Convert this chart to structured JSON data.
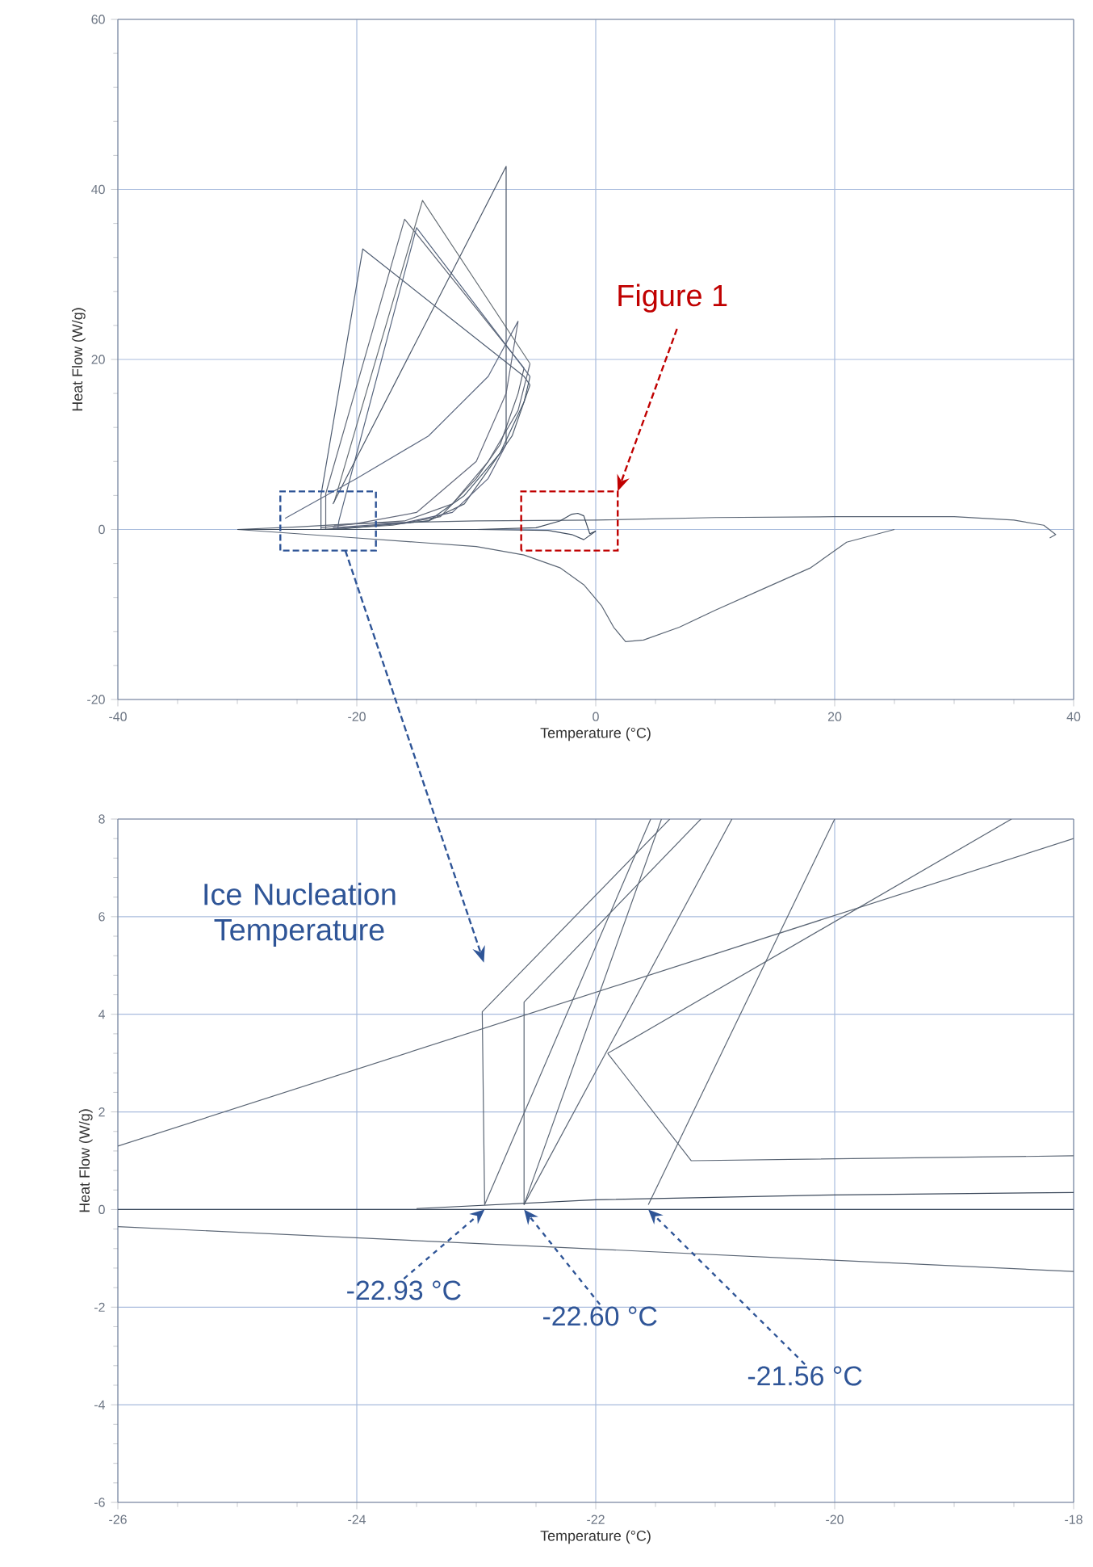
{
  "chart_data": [
    {
      "type": "line",
      "xlabel": "Temperature (°C)",
      "ylabel": "Heat Flow (W/g)",
      "xlim": [
        -40,
        40
      ],
      "ylim": [
        -20,
        60
      ],
      "xticks": [
        -40,
        -20,
        0,
        20,
        40
      ],
      "yticks": [
        -20,
        0,
        20,
        40,
        60
      ],
      "grid": true,
      "line_style": "solid",
      "annotations": [
        "Figure 1"
      ],
      "series": [
        {
          "color": "#5b6675",
          "x": [
            -30,
            -25,
            -20,
            -15,
            -10,
            -6,
            -3,
            -1,
            0.5,
            1.5,
            2.5,
            4,
            7,
            10,
            14,
            18,
            21,
            25
          ],
          "values": [
            0,
            -0.5,
            -1,
            -1.5,
            -2,
            -3,
            -4.5,
            -6.5,
            -9,
            -11.5,
            -13.2,
            -13,
            -11.5,
            -9.5,
            -7,
            -4.5,
            -1.5,
            0
          ]
        },
        {
          "color": "#5b6675",
          "x": [
            -30,
            -25,
            -20,
            -10,
            0,
            10,
            20,
            30,
            35,
            37.5,
            38.5,
            38
          ],
          "values": [
            0,
            0.3,
            0.7,
            1,
            1.1,
            1.4,
            1.5,
            1.5,
            1.1,
            0.5,
            -0.6,
            -1
          ]
        },
        {
          "color": "#4f5d72",
          "x": [
            -23,
            -23,
            -19.5,
            -6,
            -5.5
          ],
          "values": [
            0,
            4,
            33,
            18,
            17
          ]
        },
        {
          "color": "#535f6e",
          "x": [
            -5.5,
            -7,
            -9,
            -11,
            -14,
            -18,
            -23
          ],
          "values": [
            17,
            11,
            7,
            3,
            1,
            0.5,
            0
          ]
        },
        {
          "color": "#626a78",
          "x": [
            -22.6,
            -22.6,
            -16,
            -6
          ],
          "values": [
            0,
            4.2,
            36.5,
            19
          ]
        },
        {
          "color": "#5a6270",
          "x": [
            -6,
            -6.5,
            -8,
            -10,
            -13,
            -17,
            -22.6
          ],
          "values": [
            19,
            16,
            10,
            6,
            1.5,
            0.5,
            0
          ]
        },
        {
          "color": "#56657e",
          "x": [
            -21.6,
            -21.5,
            -15,
            -5.5
          ],
          "values": [
            0,
            1,
            35.5,
            18
          ]
        },
        {
          "color": "#4a5a6c",
          "x": [
            -5.5,
            -6,
            -8,
            -11,
            -14,
            -18,
            -21.6
          ],
          "values": [
            18,
            15,
            9,
            4,
            1,
            0.5,
            0
          ]
        },
        {
          "color": "#666e74",
          "x": [
            -21.9,
            -14.5,
            -5.5
          ],
          "values": [
            3.2,
            38.7,
            19.5
          ]
        },
        {
          "color": "#606878",
          "x": [
            -5.5,
            -6.5,
            -9,
            -12,
            -16,
            -21.9
          ],
          "values": [
            19.5,
            14,
            8,
            3,
            1,
            0.5
          ]
        },
        {
          "color": "#4c586a",
          "x": [
            -22,
            -7.5,
            -7.5,
            -7.5
          ],
          "values": [
            3,
            42.7,
            25,
            10
          ]
        },
        {
          "color": "#58607a",
          "x": [
            -7.5,
            -9,
            -12,
            -16,
            -22
          ],
          "values": [
            10,
            6,
            2,
            0.8,
            0.2
          ]
        },
        {
          "color": "#5e6a82",
          "x": [
            -26,
            -20,
            -14,
            -9,
            -6.5
          ],
          "values": [
            1.3,
            6,
            11,
            18,
            24.5
          ]
        },
        {
          "color": "#646a7c",
          "x": [
            -6.5,
            -7.5,
            -10,
            -15,
            -20,
            -23
          ],
          "values": [
            24.5,
            16,
            8,
            2,
            0.7,
            0.2
          ]
        },
        {
          "color": "#3d4a5c",
          "x": [
            -30,
            -20,
            -10,
            -5,
            -3,
            -2,
            -1.5,
            -1,
            -0.5,
            0
          ],
          "values": [
            0,
            0,
            0,
            0.2,
            1,
            1.8,
            1.9,
            1.6,
            -0.5,
            -0.2
          ]
        },
        {
          "color": "#414e60",
          "x": [
            0,
            -1,
            -2,
            -4,
            -10
          ],
          "values": [
            -0.2,
            -1.2,
            -0.6,
            -0.1,
            0
          ]
        }
      ]
    },
    {
      "type": "line",
      "xlabel": "Temperature (°C)",
      "ylabel": "Heat Flow (W/g)",
      "xlim": [
        -26,
        -18
      ],
      "ylim": [
        -6,
        8
      ],
      "xticks": [
        -26,
        -24,
        -22,
        -20,
        -18
      ],
      "yticks": [
        -6,
        -4,
        -2,
        0,
        2,
        4,
        6,
        8
      ],
      "grid": true,
      "line_style": "solid",
      "annotations": [
        "Ice Nucleation Temperature",
        {
          "text": "-22.93 °C",
          "x": -22.93,
          "y": 0
        },
        {
          "text": "-22.60 °C",
          "x": -22.6,
          "y": 0
        },
        {
          "text": "-21.56 °C",
          "x": -21.56,
          "y": 0
        }
      ],
      "series": [
        {
          "color": "#5b6675",
          "x": [
            -26,
            -18
          ],
          "values": [
            1.3,
            7.6
          ]
        },
        {
          "color": "#5b6675",
          "x": [
            -22.93,
            -22.95,
            -21.38
          ],
          "values": [
            0.1,
            4.05,
            8
          ]
        },
        {
          "color": "#5b6675",
          "x": [
            -22.6,
            -22.6,
            -21.12
          ],
          "values": [
            0.1,
            4.25,
            8
          ]
        },
        {
          "color": "#5b6675",
          "x": [
            -22.93,
            -21.54
          ],
          "values": [
            0.1,
            8
          ]
        },
        {
          "color": "#5b6675",
          "x": [
            -22.6,
            -21.45
          ],
          "values": [
            0.1,
            8
          ]
        },
        {
          "color": "#5b6675",
          "x": [
            -22.6,
            -20.86
          ],
          "values": [
            0.1,
            8
          ]
        },
        {
          "color": "#5b6675",
          "x": [
            -21.56,
            -20.0
          ],
          "values": [
            0.1,
            8
          ]
        },
        {
          "color": "#5b6675",
          "x": [
            -21.9,
            -18.52
          ],
          "values": [
            3.2,
            8
          ]
        },
        {
          "color": "#5b6675",
          "x": [
            -21.9,
            -21.2,
            -18
          ],
          "values": [
            3.2,
            1.0,
            1.1
          ]
        },
        {
          "color": "#5b6675",
          "x": [
            -26,
            -18
          ],
          "values": [
            -0.35,
            -1.27
          ]
        },
        {
          "color": "#3d4a5c",
          "x": [
            -26,
            -18
          ],
          "values": [
            0,
            0
          ]
        },
        {
          "color": "#3d4a5c",
          "x": [
            -23.5,
            -22,
            -20,
            -18
          ],
          "values": [
            0.02,
            0.2,
            0.3,
            0.35
          ]
        }
      ]
    }
  ]
}
